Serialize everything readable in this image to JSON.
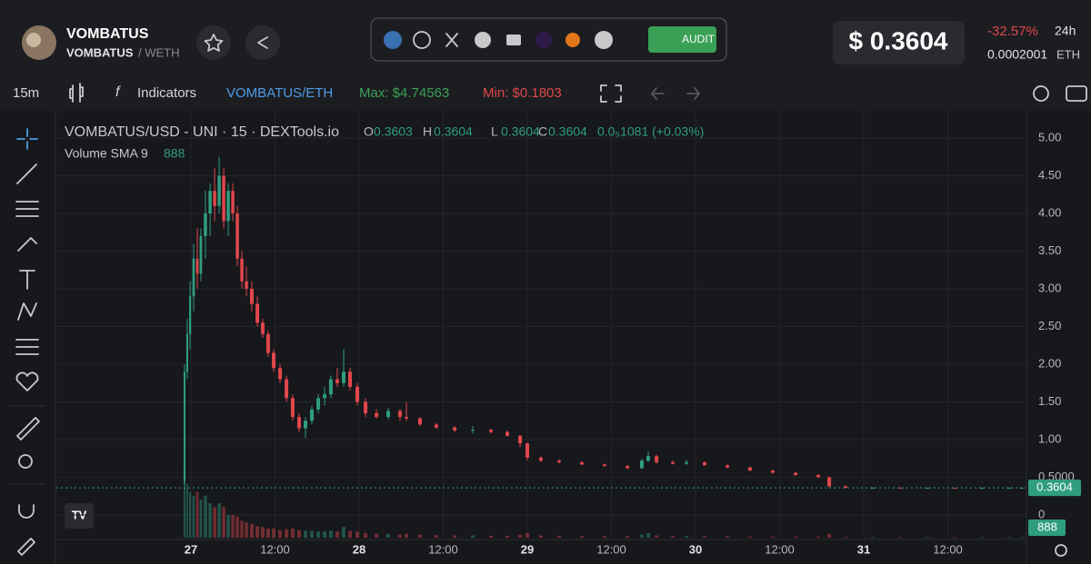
{
  "header": {
    "name": "VOMBATUS",
    "pair_base": "VOMBATUS",
    "pair_quote": "/ WETH",
    "audit": "AUDIT",
    "price": "$ 0.3604",
    "change": "-32.57%",
    "period": "24h",
    "eth_price": "0.0002001",
    "eth": "ETH"
  },
  "toolbar": {
    "interval": "15m",
    "indicators": "Indicators",
    "pair": "VOMBATUS/ETH",
    "max": "Max: $4.74563",
    "min": "Min: $0.1803"
  },
  "chart_data": {
    "type": "candlestick",
    "title": "VOMBATUS/USD - UNI · 15 · DEXTools.io",
    "ohlc_labels": [
      "O",
      "H",
      "L",
      "C"
    ],
    "ohlc_values": [
      0.3603,
      0.3604,
      0.3604,
      0.3604
    ],
    "change": "0.0₅1081 (+0.03%)",
    "volume_title": "Volume SMA 9",
    "volume_sma": 888,
    "last_price": 0.3604,
    "up_color": "#2f9e7e",
    "down_color": "#e0474c",
    "grid": true,
    "xlim": [
      26.2,
      31.962
    ],
    "ylim": [
      -0.3012,
      5.265
    ],
    "volume_lim": [
      0,
      550000
    ],
    "xticks": [
      27,
      {
        "value": 27.5,
        "label": "12:00"
      },
      28,
      {
        "value": 28.5,
        "label": "12:00"
      },
      29,
      {
        "value": 29.5,
        "label": "12:00"
      },
      30,
      {
        "value": 30.5,
        "label": "12:00"
      },
      31,
      {
        "value": 31.5,
        "label": "12:00"
      }
    ],
    "yticks": [
      0,
      {
        "value": 0.5,
        "label": "0.5000"
      },
      {
        "value": 1,
        "label": "1.00"
      },
      {
        "value": 1.5,
        "label": "1.50"
      },
      {
        "value": 2,
        "label": "2.00"
      },
      {
        "value": 2.5,
        "label": "2.50"
      },
      {
        "value": 3,
        "label": "3.00"
      },
      {
        "value": 3.5,
        "label": "3.50"
      },
      {
        "value": 4,
        "label": "4.00"
      },
      {
        "value": 4.5,
        "label": "4.50"
      },
      {
        "value": 5,
        "label": "5.00"
      }
    ],
    "x": [
      26.962,
      26.978,
      26.995,
      27.016,
      27.038,
      27.059,
      27.086,
      27.114,
      27.141,
      27.168,
      27.195,
      27.222,
      27.249,
      27.276,
      27.303,
      27.33,
      27.362,
      27.395,
      27.427,
      27.459,
      27.492,
      27.53,
      27.568,
      27.605,
      27.643,
      27.681,
      27.719,
      27.757,
      27.795,
      27.832,
      27.87,
      27.908,
      27.946,
      27.989,
      28.038,
      28.103,
      28.173,
      28.243,
      28.281,
      28.362,
      28.459,
      28.568,
      28.676,
      28.784,
      28.881,
      28.957,
      29.0,
      29.081,
      29.189,
      29.324,
      29.459,
      29.595,
      29.681,
      29.719,
      29.768,
      29.865,
      29.946,
      30.054,
      30.189,
      30.324,
      30.459,
      30.595,
      30.73,
      30.795,
      30.892,
      31.054,
      31.216,
      31.378,
      31.541,
      31.703,
      31.865,
      31.941
    ],
    "open": [
      0.45,
      1.9,
      2.4,
      2.9,
      3.4,
      3.2,
      3.7,
      4.0,
      4.3,
      4.1,
      4.5,
      3.9,
      4.3,
      4.0,
      3.4,
      3.1,
      3.0,
      2.8,
      2.55,
      2.4,
      2.15,
      1.95,
      1.8,
      1.55,
      1.3,
      1.15,
      1.25,
      1.4,
      1.55,
      1.6,
      1.8,
      1.75,
      1.9,
      1.7,
      1.5,
      1.35,
      1.3,
      1.38,
      1.3,
      1.28,
      1.2,
      1.16,
      1.12,
      1.13,
      1.1,
      1.05,
      0.95,
      0.76,
      0.72,
      0.7,
      0.67,
      0.65,
      0.62,
      0.72,
      0.78,
      0.7,
      0.68,
      0.7,
      0.66,
      0.63,
      0.59,
      0.56,
      0.53,
      0.5,
      0.38,
      0.36,
      0.362,
      0.358,
      0.36,
      0.358,
      0.36,
      0.3603
    ],
    "high": [
      2.0,
      2.6,
      3.1,
      3.6,
      3.8,
      3.8,
      4.3,
      4.4,
      4.6,
      4.75,
      4.6,
      4.4,
      4.4,
      4.1,
      3.5,
      3.3,
      3.1,
      2.9,
      2.6,
      2.45,
      2.2,
      2.0,
      1.85,
      1.6,
      1.35,
      1.3,
      1.45,
      1.6,
      1.7,
      1.85,
      1.95,
      2.2,
      1.95,
      1.75,
      1.55,
      1.4,
      1.42,
      1.4,
      1.5,
      1.3,
      1.22,
      1.18,
      1.18,
      1.14,
      1.12,
      1.06,
      0.96,
      0.78,
      0.74,
      0.71,
      0.68,
      0.66,
      0.75,
      0.84,
      0.8,
      0.72,
      0.73,
      0.71,
      0.67,
      0.64,
      0.6,
      0.57,
      0.54,
      0.51,
      0.39,
      0.37,
      0.365,
      0.362,
      0.362,
      0.362,
      0.3605,
      0.3604
    ],
    "low": [
      0.4,
      1.8,
      2.2,
      2.7,
      3.0,
      3.1,
      3.4,
      3.7,
      3.9,
      4.0,
      3.8,
      3.7,
      3.9,
      3.3,
      3.0,
      2.9,
      2.7,
      2.5,
      2.35,
      2.1,
      1.9,
      1.75,
      1.5,
      1.25,
      1.1,
      1.02,
      1.2,
      1.35,
      1.45,
      1.55,
      1.7,
      1.7,
      1.65,
      1.45,
      1.3,
      1.28,
      1.27,
      1.25,
      1.25,
      1.18,
      1.14,
      1.1,
      1.08,
      1.08,
      1.04,
      0.9,
      0.72,
      0.7,
      0.68,
      0.66,
      0.64,
      0.61,
      0.61,
      0.7,
      0.68,
      0.67,
      0.66,
      0.65,
      0.62,
      0.58,
      0.55,
      0.52,
      0.49,
      0.36,
      0.355,
      0.355,
      0.355,
      0.354,
      0.356,
      0.355,
      0.359,
      0.3604
    ],
    "close": [
      1.9,
      2.4,
      2.9,
      3.4,
      3.2,
      3.7,
      4.0,
      4.3,
      4.1,
      4.5,
      3.9,
      4.3,
      4.0,
      3.4,
      3.1,
      3.0,
      2.8,
      2.55,
      2.4,
      2.15,
      1.95,
      1.8,
      1.55,
      1.3,
      1.15,
      1.25,
      1.4,
      1.55,
      1.6,
      1.8,
      1.75,
      1.9,
      1.7,
      1.5,
      1.35,
      1.3,
      1.38,
      1.3,
      1.28,
      1.2,
      1.16,
      1.12,
      1.13,
      1.1,
      1.05,
      0.95,
      0.76,
      0.72,
      0.7,
      0.67,
      0.65,
      0.62,
      0.72,
      0.78,
      0.7,
      0.68,
      0.7,
      0.66,
      0.63,
      0.59,
      0.56,
      0.53,
      0.5,
      0.38,
      0.36,
      0.362,
      0.358,
      0.36,
      0.358,
      0.36,
      0.3603,
      0.3604
    ],
    "volume": [
      90000,
      70000,
      60000,
      55000,
      60000,
      50000,
      55000,
      45000,
      40000,
      45000,
      40000,
      30000,
      30000,
      28000,
      22000,
      20000,
      18000,
      15000,
      14000,
      12000,
      12000,
      10000,
      11000,
      12000,
      10000,
      9000,
      9000,
      8000,
      8000,
      9000,
      8000,
      14000,
      9000,
      8000,
      6000,
      5000,
      5000,
      4000,
      5000,
      4000,
      3500,
      3000,
      3000,
      2500,
      2500,
      4000,
      6000,
      3000,
      2500,
      2000,
      2000,
      2000,
      4000,
      6000,
      3000,
      2000,
      2000,
      1800,
      1800,
      1500,
      1500,
      1500,
      1500,
      5000,
      1200,
      1000,
      900,
      900,
      900,
      900,
      888,
      888
    ]
  }
}
